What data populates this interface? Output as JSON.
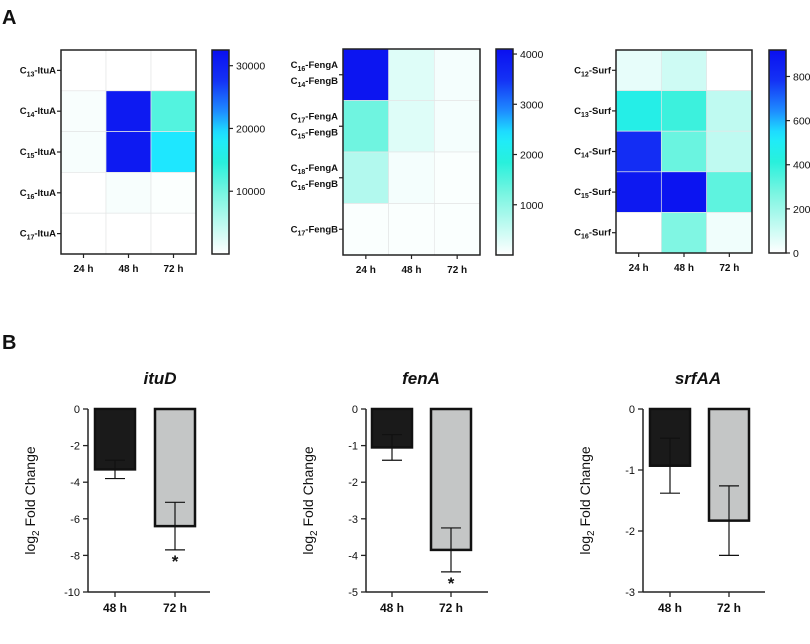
{
  "panel_labels": [
    "A",
    "B"
  ],
  "chart_data": [
    {
      "type": "heatmap",
      "rows": [
        [
          "C",
          "13",
          "-ItuA"
        ],
        [
          "C",
          "14",
          "-ItuA"
        ],
        [
          "C",
          "15",
          "-ItuA"
        ],
        [
          "C",
          "16",
          "-ItuA"
        ],
        [
          "C",
          "17",
          "-ItuA"
        ]
      ],
      "columns": [
        "24 h",
        "48 h",
        "72 h"
      ],
      "values": [
        [
          0,
          0,
          0
        ],
        [
          500,
          31000,
          12000
        ],
        [
          600,
          31000,
          19000
        ],
        [
          0,
          600,
          300
        ],
        [
          0,
          0,
          0
        ]
      ],
      "colorbar": {
        "min": 0,
        "max": 32500,
        "ticks": [
          10000,
          20000,
          30000
        ],
        "tick_labels": [
          "10000",
          "20000",
          "30000"
        ]
      }
    },
    {
      "type": "heatmap",
      "rows": [
        [
          "C",
          "16",
          "-FengA",
          "C",
          "14",
          "-FengB"
        ],
        [
          "C",
          "17",
          "-FengA",
          "C",
          "15",
          "-FengB"
        ],
        [
          "C",
          "18",
          "-FengA",
          "C",
          "16",
          "-FengB"
        ],
        [
          "C",
          "17",
          "-FengB"
        ]
      ],
      "columns": [
        "24 h",
        "48 h",
        "72 h"
      ],
      "values": [
        [
          4000,
          300,
          100
        ],
        [
          1300,
          300,
          100
        ],
        [
          700,
          100,
          50
        ],
        [
          50,
          50,
          50
        ]
      ],
      "colorbar": {
        "min": 0,
        "max": 4100,
        "ticks": [
          1000,
          2000,
          3000,
          4000
        ],
        "tick_labels": [
          "1000",
          "2000",
          "3000",
          "4000"
        ]
      }
    },
    {
      "type": "heatmap",
      "rows": [
        [
          "C",
          "12",
          "-Surf"
        ],
        [
          "C",
          "13",
          "-Surf"
        ],
        [
          "C",
          "14",
          "-Surf"
        ],
        [
          "C",
          "15",
          "-Surf"
        ],
        [
          "C",
          "16",
          "-Surf"
        ]
      ],
      "columns": [
        "24 h",
        "48 h",
        "72 h"
      ],
      "values": [
        [
          50,
          100,
          0
        ],
        [
          450,
          380,
          130
        ],
        [
          800,
          300,
          130
        ],
        [
          880,
          900,
          320
        ],
        [
          0,
          260,
          30
        ]
      ],
      "colorbar": {
        "min": 0,
        "max": 920,
        "ticks": [
          0,
          200,
          400,
          600,
          800
        ],
        "tick_labels": [
          "0",
          "200",
          "400",
          "600",
          "800"
        ]
      }
    },
    {
      "type": "bar",
      "title": "ituD",
      "ylabel": "log2 Fold Change",
      "ylabel_main": "log",
      "ylabel_sub": "2",
      "ylabel_rest": " Fold Change",
      "categories": [
        "48 h",
        "72 h"
      ],
      "values": [
        -3.3,
        -6.4
      ],
      "errors": [
        0.5,
        1.3
      ],
      "significance": [
        "",
        "*"
      ],
      "ylim": [
        -10,
        0
      ],
      "yticks": [
        0,
        -2,
        -4,
        -6,
        -8,
        -10
      ],
      "colors": [
        "#1a1a1a",
        "#c4c6c6"
      ]
    },
    {
      "type": "bar",
      "title": "fenA",
      "ylabel": "log2 Fold Change",
      "ylabel_main": "log",
      "ylabel_sub": "2",
      "ylabel_rest": " Fold Change",
      "categories": [
        "48 h",
        "72 h"
      ],
      "values": [
        -1.05,
        -3.85
      ],
      "errors": [
        0.35,
        0.6
      ],
      "significance": [
        "",
        "*"
      ],
      "ylim": [
        -5,
        0
      ],
      "yticks": [
        0,
        -1,
        -2,
        -3,
        -4,
        -5
      ],
      "colors": [
        "#1a1a1a",
        "#c4c6c6"
      ]
    },
    {
      "type": "bar",
      "title": "srfAA",
      "ylabel": "log2 Fold Change",
      "ylabel_main": "log",
      "ylabel_sub": "2",
      "ylabel_rest": " Fold Change",
      "categories": [
        "48 h",
        "72 h"
      ],
      "values": [
        -0.93,
        -1.83
      ],
      "errors": [
        0.45,
        0.57
      ],
      "significance": [
        "",
        ""
      ],
      "ylim": [
        -3,
        0
      ],
      "yticks": [
        0,
        -1,
        -2,
        -3
      ],
      "colors": [
        "#1a1a1a",
        "#c4c6c6"
      ]
    }
  ]
}
